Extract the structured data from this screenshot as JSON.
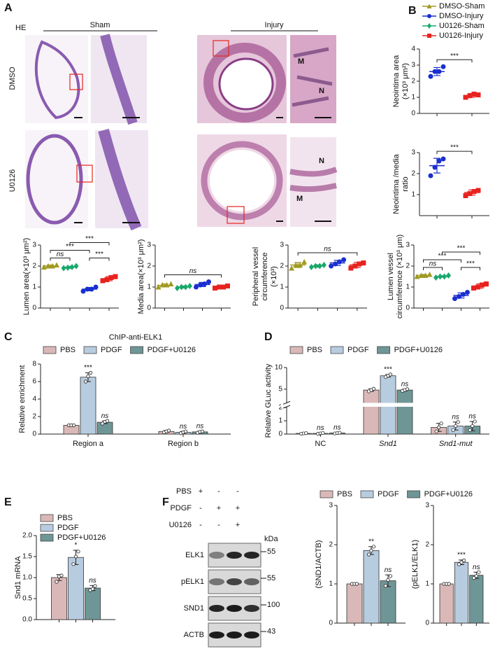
{
  "panels": [
    "A",
    "B",
    "C",
    "D",
    "E",
    "F"
  ],
  "panel_a": {
    "stain": "HE",
    "columns": [
      "Sham",
      "Injury"
    ],
    "rows": [
      "DMSO",
      "U0126"
    ],
    "inset_labels": [
      "M",
      "N",
      "N",
      "M"
    ]
  },
  "panel_f": {
    "conditions": [
      {
        "name": "PBS",
        "signs": [
          "+",
          "-",
          "-"
        ]
      },
      {
        "name": "PDGF",
        "signs": [
          "-",
          "+",
          "+"
        ]
      },
      {
        "name": "U0126",
        "signs": [
          "-",
          "-",
          "+"
        ]
      }
    ],
    "unit": "kDa",
    "bands": [
      {
        "name": "ELK1",
        "marker": 55
      },
      {
        "name": "pELK1",
        "marker": 55
      },
      {
        "name": "SND1",
        "marker": 100
      },
      {
        "name": "ACTB",
        "marker": 43
      }
    ]
  },
  "chart_data": [
    {
      "type": "dot",
      "ylabel": [
        "Neointima area",
        "(×10³ μm²)"
      ],
      "ylim": [
        0,
        4
      ],
      "yticks": [
        0,
        1,
        2,
        3,
        4
      ],
      "series": [
        {
          "color": "#1a2fcf",
          "marker": "circle",
          "values": [
            2.3,
            2.6,
            2.6,
            2.9
          ],
          "mean": 2.6,
          "sd": 0.25
        },
        {
          "color": "#e8231f",
          "marker": "square",
          "values": [
            1.0,
            1.1,
            1.2,
            1.15
          ],
          "mean": 1.12,
          "sd": 0.12
        }
      ],
      "brackets": [
        {
          "from": 0,
          "to": 1,
          "label": "***"
        }
      ]
    },
    {
      "type": "dot",
      "ylabel": [
        "Neointima /media",
        "ratio"
      ],
      "ylim": [
        0,
        3
      ],
      "yticks": [
        1,
        2,
        3
      ],
      "series": [
        {
          "color": "#1a2fcf",
          "marker": "circle",
          "values": [
            1.9,
            2.3,
            2.6,
            2.7
          ],
          "mean": 2.38,
          "sd": 0.35
        },
        {
          "color": "#e8231f",
          "marker": "square",
          "values": [
            0.95,
            1.05,
            1.15,
            1.2
          ],
          "mean": 1.1,
          "sd": 0.12
        }
      ],
      "brackets": [
        {
          "from": 0,
          "to": 1,
          "label": "***"
        }
      ]
    },
    {
      "type": "dot",
      "ylabel": [
        "Lumen area(×10³ μm²)"
      ],
      "ylim": [
        0,
        3
      ],
      "yticks": [
        0,
        1,
        2,
        3
      ],
      "legend": {
        "order": [
          0,
          2,
          1,
          3
        ]
      },
      "series": [
        {
          "name": "DMSO-Sham",
          "color": "#a09a20",
          "marker": "triangle",
          "values": [
            1.95,
            2.0,
            2.0,
            2.05
          ],
          "mean": 2.0,
          "sd": 0.05
        },
        {
          "name": "U0126-Sham",
          "color": "#19a86b",
          "marker": "diamond",
          "values": [
            1.9,
            1.92,
            1.95,
            2.0
          ],
          "mean": 1.94,
          "sd": 0.05
        },
        {
          "name": "DMSO-Injury",
          "color": "#1a2fcf",
          "marker": "circle",
          "values": [
            0.8,
            0.9,
            0.9,
            1.0
          ],
          "mean": 0.9,
          "sd": 0.08
        },
        {
          "name": "U0126-Injury",
          "color": "#e8231f",
          "marker": "square",
          "values": [
            1.3,
            1.35,
            1.45,
            1.5
          ],
          "mean": 1.4,
          "sd": 0.1
        }
      ],
      "brackets": [
        {
          "from": 0,
          "to": 1,
          "label": "ns"
        },
        {
          "from": 2,
          "to": 3,
          "label": "***"
        },
        {
          "from": 0,
          "to": 2,
          "label": "***"
        },
        {
          "from": 1,
          "to": 3,
          "label": "***"
        }
      ]
    },
    {
      "type": "dot",
      "ylabel": [
        "Media  area(×10³ μm²)"
      ],
      "ylim": [
        0,
        3
      ],
      "yticks": [
        0,
        1,
        2,
        3
      ],
      "series": [
        {
          "color": "#a09a20",
          "marker": "triangle",
          "values": [
            1.0,
            1.1,
            1.1,
            1.15
          ],
          "mean": 1.08,
          "sd": 0.07
        },
        {
          "color": "#19a86b",
          "marker": "diamond",
          "values": [
            0.95,
            1.0,
            1.0,
            1.05
          ],
          "mean": 1.0,
          "sd": 0.05
        },
        {
          "color": "#1a2fcf",
          "marker": "circle",
          "values": [
            1.0,
            1.1,
            1.15,
            1.25
          ],
          "mean": 1.12,
          "sd": 0.1
        },
        {
          "color": "#e8231f",
          "marker": "square",
          "values": [
            0.95,
            1.0,
            1.0,
            1.05
          ],
          "mean": 1.0,
          "sd": 0.04
        }
      ],
      "brackets": [
        {
          "from": 0,
          "to": 3,
          "label": "ns"
        }
      ]
    },
    {
      "type": "dot",
      "ylabel": [
        "Peripheral vessel",
        "circumference",
        "(×10³)"
      ],
      "ylim": [
        0,
        3
      ],
      "yticks": [
        0,
        1,
        2,
        3
      ],
      "series": [
        {
          "color": "#a09a20",
          "marker": "triangle",
          "values": [
            1.9,
            2.05,
            2.05,
            2.2
          ],
          "mean": 2.05,
          "sd": 0.12
        },
        {
          "color": "#19a86b",
          "marker": "diamond",
          "values": [
            1.95,
            2.0,
            2.0,
            2.05
          ],
          "mean": 2.0,
          "sd": 0.06
        },
        {
          "color": "#1a2fcf",
          "marker": "circle",
          "values": [
            2.0,
            2.1,
            2.2,
            2.3
          ],
          "mean": 2.15,
          "sd": 0.12
        },
        {
          "color": "#e8231f",
          "marker": "square",
          "values": [
            1.9,
            2.0,
            2.1,
            2.15
          ],
          "mean": 2.05,
          "sd": 0.12
        }
      ],
      "brackets": [
        {
          "from": 0,
          "to": 3,
          "label": "ns"
        }
      ]
    },
    {
      "type": "dot",
      "ylabel": [
        "Lumen vessel",
        "circumference (×10³ μm)"
      ],
      "ylim": [
        0,
        3
      ],
      "yticks": [
        0,
        1,
        2,
        3
      ],
      "series": [
        {
          "color": "#a09a20",
          "marker": "triangle",
          "values": [
            1.5,
            1.55,
            1.55,
            1.6
          ],
          "mean": 1.55,
          "sd": 0.05
        },
        {
          "color": "#19a86b",
          "marker": "diamond",
          "values": [
            1.45,
            1.5,
            1.5,
            1.55
          ],
          "mean": 1.5,
          "sd": 0.04
        },
        {
          "color": "#1a2fcf",
          "marker": "circle",
          "values": [
            0.45,
            0.55,
            0.65,
            0.75
          ],
          "mean": 0.6,
          "sd": 0.12
        },
        {
          "color": "#e8231f",
          "marker": "square",
          "values": [
            0.95,
            1.0,
            1.1,
            1.15
          ],
          "mean": 1.05,
          "sd": 0.1
        }
      ],
      "brackets": [
        {
          "from": 0,
          "to": 1,
          "label": "ns"
        },
        {
          "from": 2,
          "to": 3,
          "label": "***"
        },
        {
          "from": 0,
          "to": 2,
          "label": "***"
        },
        {
          "from": 1,
          "to": 3,
          "label": "***"
        }
      ]
    },
    {
      "type": "bar",
      "title": "ChIP-anti-ELK1",
      "ylabel": [
        "Relative enrichment"
      ],
      "categories": [
        "Region a",
        "Region b"
      ],
      "ylim": [
        0,
        8
      ],
      "yticks": [
        0,
        2,
        4,
        6,
        8
      ],
      "series": [
        {
          "name": "PBS",
          "color": "#dbb8b8",
          "values": [
            1.0,
            0.3
          ],
          "errors": [
            0.02,
            0.1
          ],
          "points": [
            [
              1.0,
              1.0,
              1.0
            ],
            [
              0.2,
              0.3,
              0.4
            ]
          ],
          "annotations": [
            null,
            null
          ]
        },
        {
          "name": "PDGF",
          "color": "#b8cce0",
          "values": [
            6.5,
            0.2
          ],
          "errors": [
            0.5,
            0.1
          ],
          "points": [
            [
              6.0,
              6.6,
              7.0
            ],
            [
              0.1,
              0.2,
              0.3
            ]
          ],
          "annotations": [
            "***",
            "ns"
          ]
        },
        {
          "name": "PDGF+U0126",
          "color": "#6f9696",
          "values": [
            1.35,
            0.25
          ],
          "errors": [
            0.15,
            0.08
          ],
          "points": [
            [
              1.2,
              1.4,
              1.5
            ],
            [
              0.15,
              0.25,
              0.3
            ]
          ],
          "annotations": [
            "ns",
            "ns"
          ]
        }
      ]
    },
    {
      "type": "bar",
      "ylabel": [
        "Relative GLuc activity"
      ],
      "categories": [
        "NC",
        "Snd1",
        "Snd1-mut"
      ],
      "italic": [
        false,
        true,
        true
      ],
      "ylim": [
        0,
        10
      ],
      "ybreak": 2,
      "yticks": [
        0,
        1,
        2,
        5,
        10
      ],
      "series": [
        {
          "name": "PBS",
          "color": "#dbb8b8",
          "values": [
            0.05,
            4.8,
            0.5
          ],
          "errors": [
            0.02,
            0.3,
            0.3
          ],
          "points": [
            [
              0.03,
              0.05,
              0.07
            ],
            [
              4.5,
              4.8,
              5.1
            ],
            [
              0.2,
              0.5,
              0.8
            ]
          ],
          "annotations": [
            null,
            null,
            null
          ]
        },
        {
          "name": "PDGF",
          "color": "#b8cce0",
          "values": [
            0.05,
            8.1,
            0.6
          ],
          "errors": [
            0.03,
            0.3,
            0.3
          ],
          "points": [
            [
              0.02,
              0.05,
              0.08
            ],
            [
              7.8,
              8.1,
              8.4
            ],
            [
              0.3,
              0.6,
              0.9
            ]
          ],
          "annotations": [
            "ns",
            "***",
            "ns"
          ]
        },
        {
          "name": "PDGF+U0126",
          "color": "#6f9696",
          "values": [
            0.08,
            4.8,
            0.6
          ],
          "errors": [
            0.03,
            0.2,
            0.35
          ],
          "points": [
            [
              0.05,
              0.08,
              0.1
            ],
            [
              4.6,
              4.8,
              5.0
            ],
            [
              0.3,
              0.6,
              0.95
            ]
          ],
          "annotations": [
            "ns",
            "ns",
            "ns"
          ]
        }
      ]
    },
    {
      "type": "bar",
      "ylabel": [
        "Snd1 mRNA"
      ],
      "categories": [
        null
      ],
      "ylim": [
        0,
        2
      ],
      "yticks": [
        {
          "value": 0,
          "label": "0.0"
        },
        {
          "value": 0.5,
          "label": "0.5"
        },
        {
          "value": 1,
          "label": "1.0"
        },
        {
          "value": 1.5,
          "label": "1.5"
        },
        {
          "value": 2,
          "label": "2.0"
        }
      ],
      "series": [
        {
          "name": "PBS",
          "color": "#dbb8b8",
          "values": [
            1.0
          ],
          "errors": [
            0.07
          ],
          "points": [
            [
              0.9,
              1.03,
              1.05
            ]
          ],
          "annotations": [
            null
          ]
        },
        {
          "name": "PDGF",
          "color": "#b8cce0",
          "values": [
            1.48
          ],
          "errors": [
            0.17
          ],
          "points": [
            [
              1.32,
              1.5,
              1.62
            ]
          ],
          "annotations": [
            "*"
          ]
        },
        {
          "name": "PDGF+U0126",
          "color": "#6f9696",
          "values": [
            0.75
          ],
          "errors": [
            0.06
          ],
          "points": [
            [
              0.7,
              0.73,
              0.8
            ]
          ],
          "annotations": [
            "ns"
          ]
        }
      ]
    },
    {
      "type": "bar",
      "ylabel": [
        "(SND1/ACTB)"
      ],
      "categories": [
        null
      ],
      "ylim": [
        0,
        3
      ],
      "yticks": [
        0,
        1,
        2,
        3
      ],
      "series": [
        {
          "name": "PBS",
          "color": "#dbb8b8",
          "values": [
            1.0
          ],
          "errors": [
            0
          ],
          "points": [
            [
              1.0,
              1.0,
              1.0
            ]
          ],
          "annotations": [
            null
          ]
        },
        {
          "name": "PDGF",
          "color": "#b8cce0",
          "values": [
            1.85
          ],
          "errors": [
            0.1
          ],
          "points": [
            [
              1.75,
              1.85,
              1.95
            ]
          ],
          "annotations": [
            "**"
          ]
        },
        {
          "name": "PDGF+U0126",
          "color": "#6f9696",
          "values": [
            1.08
          ],
          "errors": [
            0.15
          ],
          "points": [
            [
              0.95,
              1.1,
              1.2
            ]
          ],
          "annotations": [
            "ns"
          ]
        }
      ]
    },
    {
      "type": "bar",
      "ylabel": [
        "(pELK1/ELK1)"
      ],
      "categories": [
        null
      ],
      "ylim": [
        0,
        3
      ],
      "yticks": [
        0,
        1,
        2,
        3
      ],
      "series": [
        {
          "color": "#dbb8b8",
          "values": [
            1.0
          ],
          "errors": [
            0
          ],
          "points": [
            [
              1.0,
              1.0,
              1.0
            ]
          ],
          "annotations": [
            null
          ]
        },
        {
          "color": "#b8cce0",
          "values": [
            1.55
          ],
          "errors": [
            0.06
          ],
          "points": [
            [
              1.5,
              1.55,
              1.6
            ]
          ],
          "annotations": [
            "***"
          ]
        },
        {
          "color": "#6f9696",
          "values": [
            1.22
          ],
          "errors": [
            0.08
          ],
          "points": [
            [
              1.15,
              1.2,
              1.3
            ]
          ],
          "annotations": [
            "ns"
          ]
        }
      ]
    }
  ]
}
